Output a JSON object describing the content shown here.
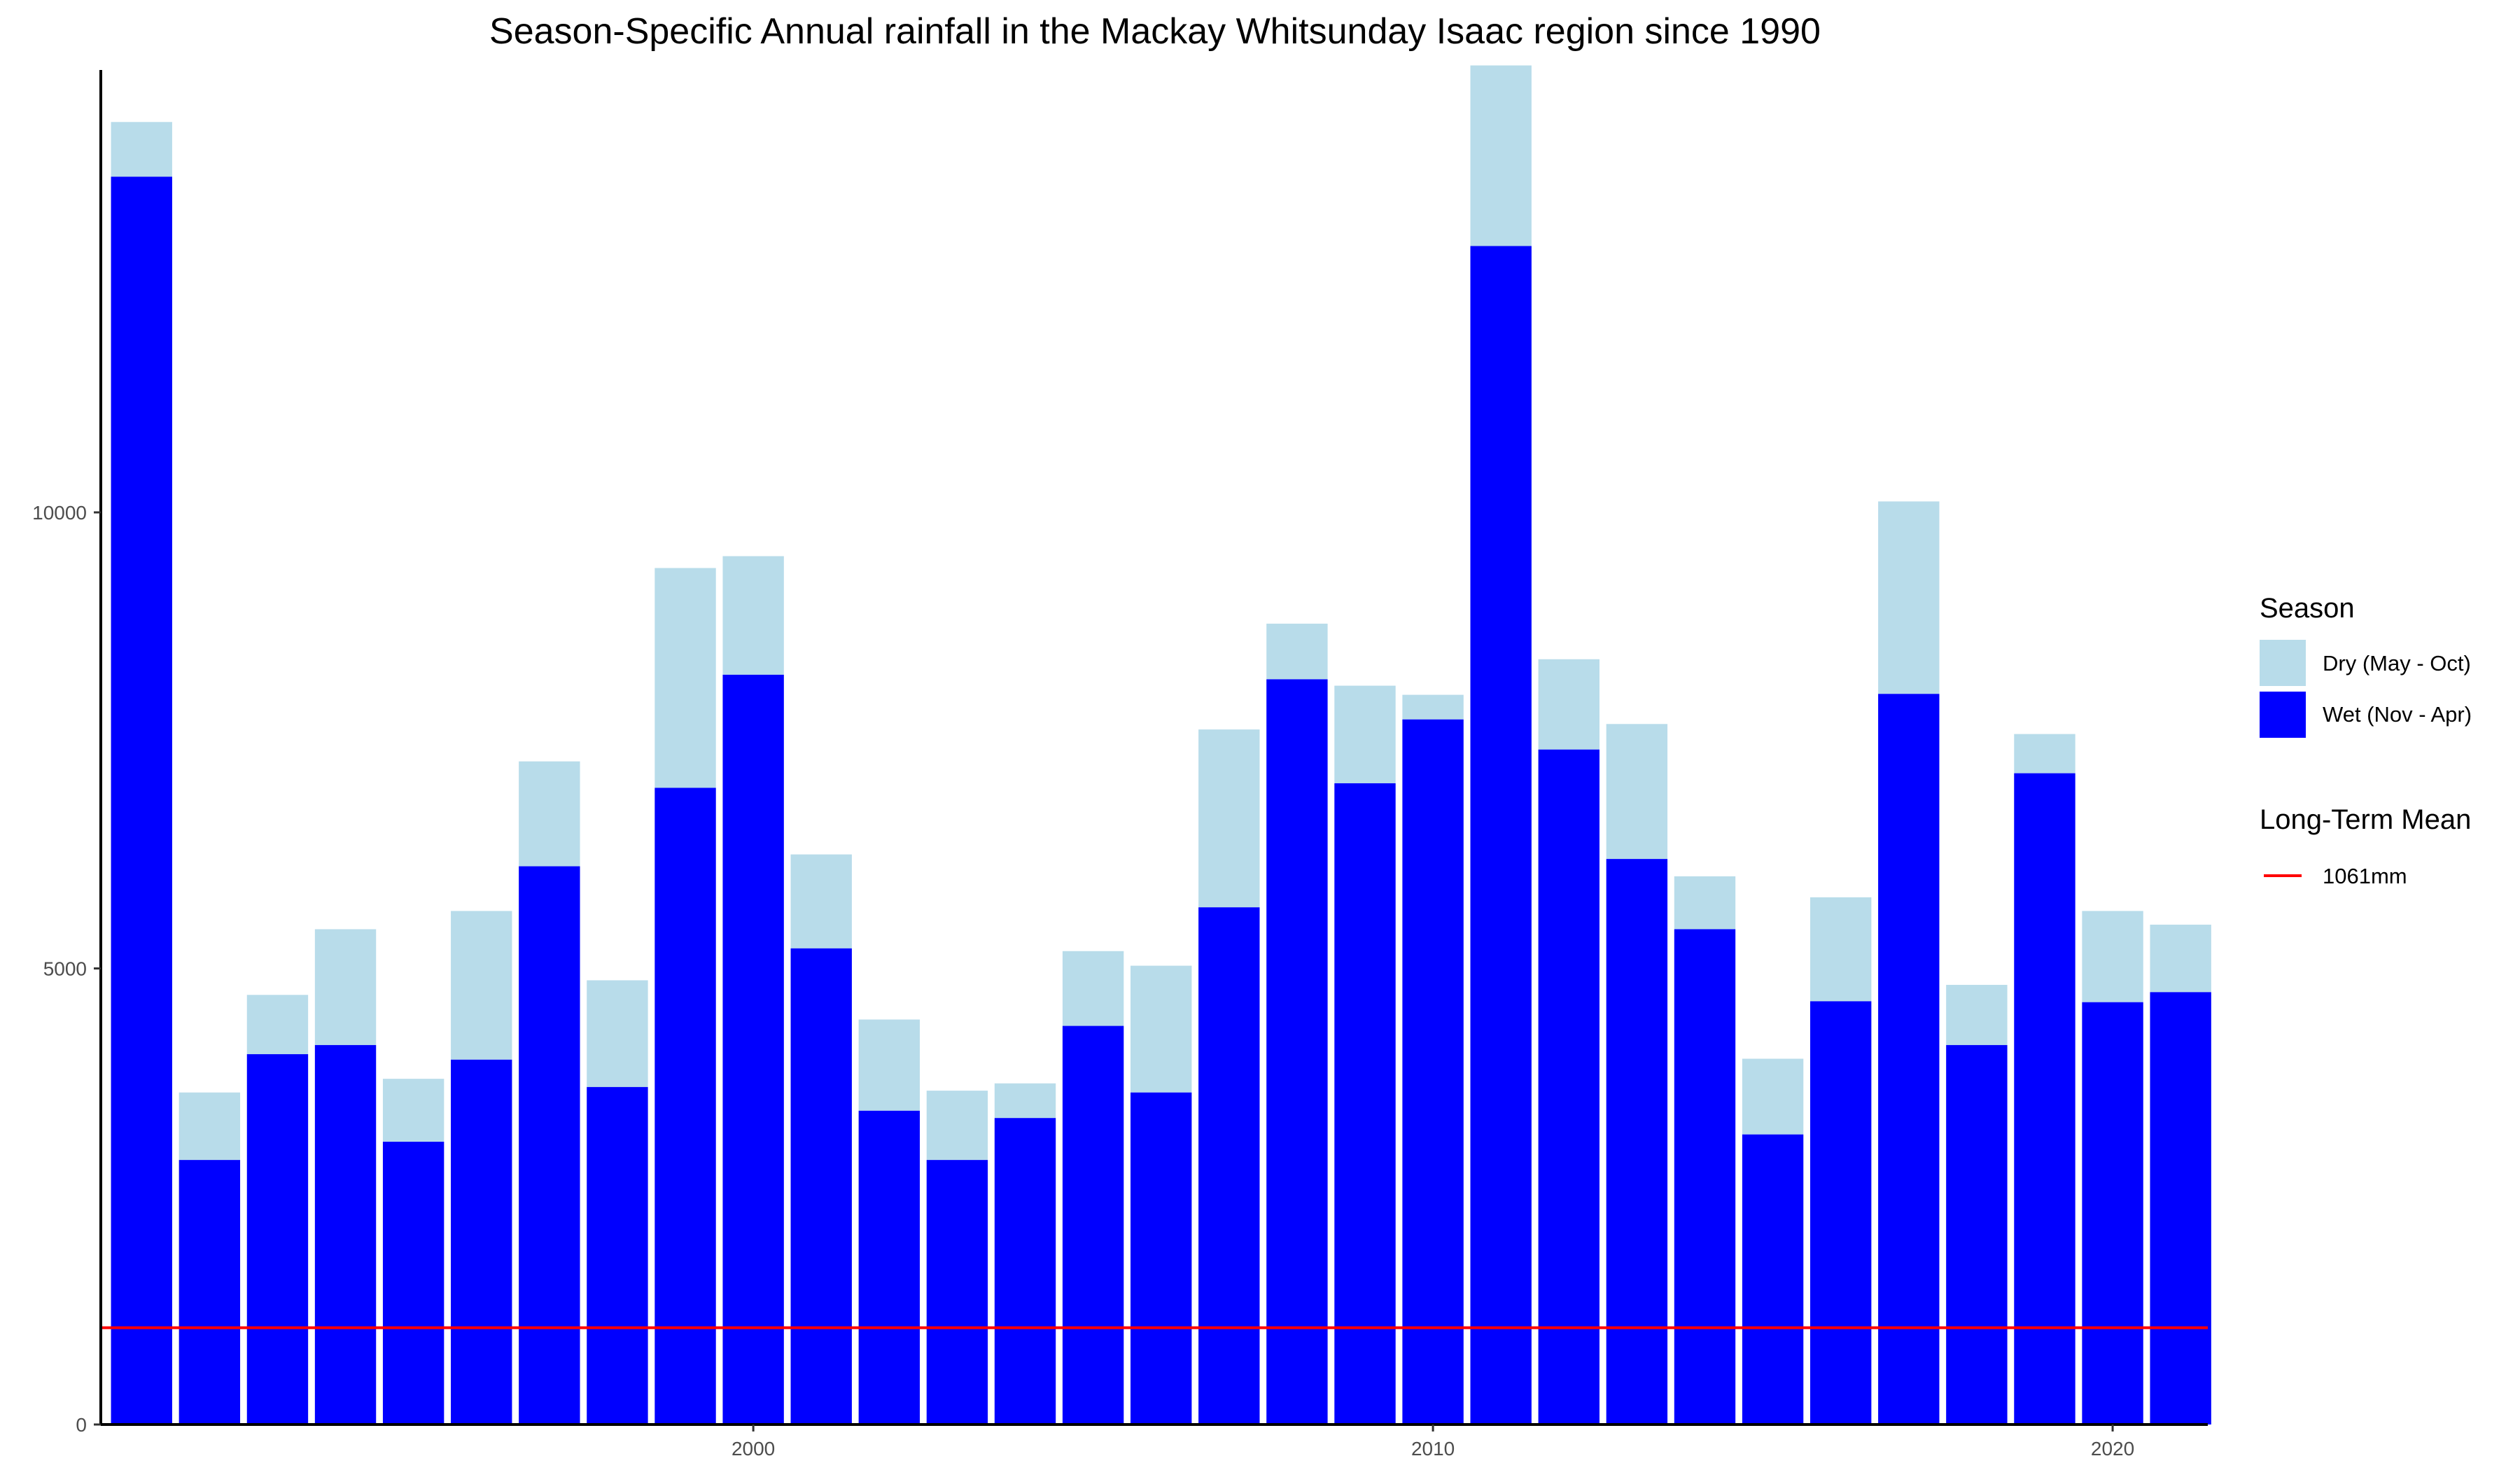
{
  "chart_data": {
    "type": "bar",
    "stacked": true,
    "title": "Season-Specific Annual rainfall in the Mackay Whitsunday Isaac region since 1990",
    "xlabel": "",
    "ylabel": "",
    "x": [
      1991,
      1992,
      1993,
      1994,
      1995,
      1996,
      1997,
      1998,
      1999,
      2000,
      2001,
      2002,
      2003,
      2004,
      2005,
      2006,
      2007,
      2008,
      2009,
      2010,
      2011,
      2012,
      2013,
      2014,
      2015,
      2016,
      2017,
      2018,
      2019,
      2020,
      2021
    ],
    "x_ticks": [
      {
        "value": 2000,
        "label": "2000"
      },
      {
        "value": 2010,
        "label": "2010"
      },
      {
        "value": 2020,
        "label": "2020"
      }
    ],
    "y_ticks": [
      {
        "value": 0,
        "label": "0"
      },
      {
        "value": 5000,
        "label": "5000"
      },
      {
        "value": 10000,
        "label": "10000"
      }
    ],
    "xlim": [
      1990.4,
      2021.4
    ],
    "ylim": [
      0,
      14850
    ],
    "grid": false,
    "legend_position": "right",
    "series": [
      {
        "name": "Wet (Nov - Apr)",
        "color": "#0000FF",
        "values": [
          13680,
          2900,
          4060,
          4160,
          3100,
          4000,
          6120,
          3700,
          6980,
          8220,
          5220,
          3440,
          2900,
          3360,
          4370,
          3640,
          5670,
          8170,
          7030,
          7730,
          12920,
          7400,
          6200,
          5430,
          3180,
          4640,
          8010,
          4160,
          7140,
          4630,
          4740
        ]
      },
      {
        "name": "Dry (May - Oct)",
        "color": "#B8DCEA",
        "values": [
          600,
          740,
          650,
          1270,
          690,
          1630,
          1150,
          1170,
          2410,
          1300,
          1030,
          1000,
          760,
          380,
          820,
          1390,
          1950,
          610,
          1070,
          270,
          1980,
          990,
          1480,
          580,
          830,
          1140,
          2110,
          660,
          430,
          1000,
          740
        ]
      }
    ],
    "legend": {
      "season": {
        "title": "Season",
        "entries": [
          {
            "label": "Dry (May - Oct)",
            "color": "#B8DCEA"
          },
          {
            "label": "Wet (Nov - Apr)",
            "color": "#0000FF"
          }
        ]
      },
      "mean": {
        "title": "Long-Term Mean",
        "entries": [
          {
            "label": "1061mm",
            "color": "#FF0000"
          }
        ]
      }
    },
    "reference_line": {
      "name": "Long-Term Mean",
      "label": "1061mm",
      "value": 1061,
      "color": "#FF0000"
    }
  }
}
